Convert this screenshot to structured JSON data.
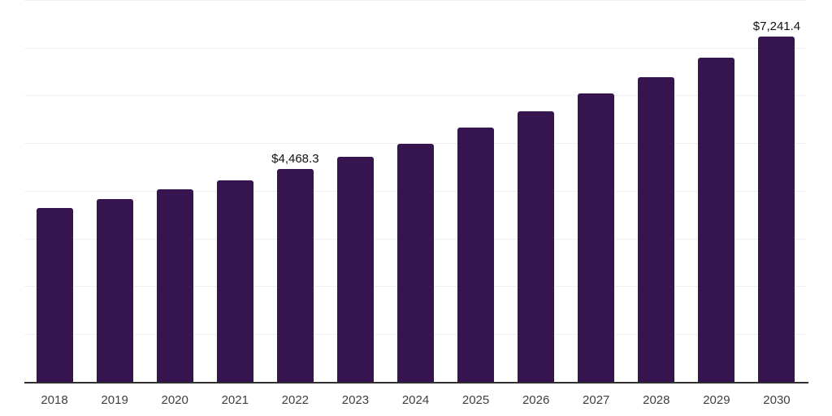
{
  "chart_data": {
    "type": "bar",
    "title": "",
    "xlabel": "",
    "ylabel": "",
    "categories": [
      "2018",
      "2019",
      "2020",
      "2021",
      "2022",
      "2023",
      "2024",
      "2025",
      "2026",
      "2027",
      "2028",
      "2029",
      "2030"
    ],
    "values": [
      3640,
      3830,
      4030,
      4220,
      4468.3,
      4715,
      4980,
      5330,
      5670,
      6040,
      6380,
      6800,
      7241.4
    ],
    "data_labels": {
      "2022": "$4,468.3",
      "2030": "$7,241.4"
    },
    "ylim": [
      0,
      8000
    ],
    "ytick_step": 1000,
    "grid": "horizontal",
    "y_axis_labels_visible": false,
    "legend": "none"
  },
  "colors": {
    "background": "#ffffff",
    "bar": "#361450",
    "gridline": "#f0f0f0",
    "axis_line": "#2f2f2f",
    "tick_label": "#3f3f3f",
    "value_label": "#111111"
  }
}
